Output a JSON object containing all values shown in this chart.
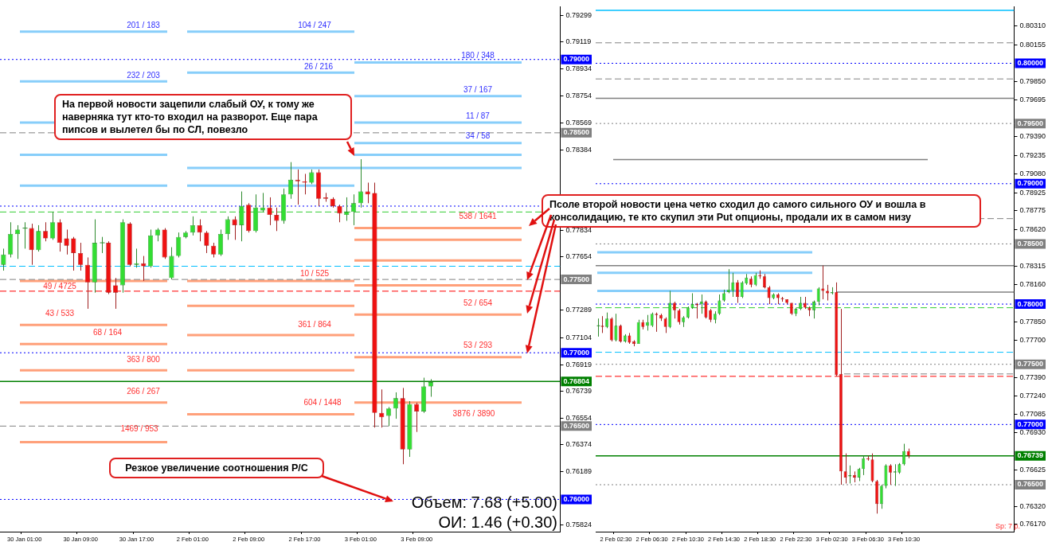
{
  "chart_data": [
    {
      "type": "candlestick",
      "categories": [
        null,
        null,
        null,
        "30 Jan 01:00",
        null,
        null,
        null,
        null,
        null,
        null,
        null,
        "30 Jan 09:00",
        null,
        null,
        null,
        null,
        null,
        null,
        null,
        "30 Jan 17:00",
        null,
        null,
        null,
        null,
        null,
        null,
        null,
        "2 Feb 01:00",
        null,
        null,
        null,
        null,
        null,
        null,
        null,
        "2 Feb 09:00",
        null,
        null,
        null,
        null,
        null,
        null,
        null,
        "2 Feb 17:00",
        null,
        null,
        null,
        null,
        null,
        null,
        null,
        "3 Feb 01:00",
        null,
        null,
        null,
        null,
        null,
        null,
        null,
        "3 Feb 09:00",
        null,
        null,
        null,
        null,
        null,
        null,
        null,
        null,
        null,
        null,
        null,
        null,
        null,
        null,
        null,
        null,
        null,
        null,
        null,
        null
      ],
      "ohlc": [
        [
          0.776,
          0.7771,
          0.7756,
          0.7767
        ],
        [
          0.7767,
          0.7789,
          0.7765,
          0.7781
        ],
        [
          0.7781,
          0.7787,
          0.7764,
          0.7784
        ],
        [
          0.7785,
          0.7789,
          0.7771,
          0.7785
        ],
        [
          0.7785,
          0.7788,
          0.776,
          0.777
        ],
        [
          0.777,
          0.7787,
          0.7769,
          0.7783
        ],
        [
          0.7783,
          0.7789,
          0.7776,
          0.7778
        ],
        [
          0.7778,
          0.7796,
          0.7777,
          0.7789
        ],
        [
          0.7789,
          0.7791,
          0.7769,
          0.7775
        ],
        [
          0.7778,
          0.7784,
          0.7767,
          0.7773
        ],
        [
          0.7778,
          0.7779,
          0.7756,
          0.7768
        ],
        [
          0.7768,
          0.7775,
          0.7756,
          0.776
        ],
        [
          0.776,
          0.7765,
          0.773,
          0.7748
        ],
        [
          0.7748,
          0.7791,
          0.7741,
          0.7775
        ],
        [
          0.7775,
          0.7779,
          0.7768,
          0.7775
        ],
        [
          0.7775,
          0.7776,
          0.774,
          0.7741
        ],
        [
          0.7746,
          0.7751,
          0.773,
          0.7741
        ],
        [
          0.7746,
          0.7791,
          0.7741,
          0.7789
        ],
        [
          0.7788,
          0.7789,
          0.7759,
          0.776
        ],
        [
          0.776,
          0.7771,
          0.7758,
          0.7761
        ],
        [
          0.7761,
          0.7766,
          0.7749,
          0.7759
        ],
        [
          0.7759,
          0.7784,
          0.7758,
          0.778
        ],
        [
          0.778,
          0.7785,
          0.7776,
          0.7784
        ],
        [
          0.7784,
          0.7785,
          0.7764,
          0.7765
        ],
        [
          0.7751,
          0.7772,
          0.775,
          0.7766
        ],
        [
          0.7766,
          0.7782,
          0.7765,
          0.7779
        ],
        [
          0.7779,
          0.7783,
          0.7778,
          0.7782
        ],
        [
          0.7782,
          0.7793,
          0.778,
          0.7787
        ],
        [
          0.7787,
          0.7791,
          0.7776,
          0.7782
        ],
        [
          0.7782,
          0.7783,
          0.7768,
          0.7773
        ],
        [
          0.7773,
          0.7775,
          0.7765,
          0.7767
        ],
        [
          0.7767,
          0.7784,
          0.7766,
          0.7781
        ],
        [
          0.7781,
          0.7793,
          0.7777,
          0.7791
        ],
        [
          0.7791,
          0.7793,
          0.7777,
          0.7787
        ],
        [
          0.7787,
          0.781,
          0.7776,
          0.78
        ],
        [
          0.7801,
          0.7802,
          0.7782,
          0.7783
        ],
        [
          0.7783,
          0.7808,
          0.7782,
          0.7799
        ],
        [
          0.7797,
          0.7809,
          0.7796,
          0.7799
        ],
        [
          0.7799,
          0.7806,
          0.7787,
          0.7794
        ],
        [
          0.7794,
          0.7799,
          0.7783,
          0.779
        ],
        [
          0.779,
          0.7812,
          0.7788,
          0.7808
        ],
        [
          0.7808,
          0.783,
          0.7805,
          0.7818
        ],
        [
          0.7818,
          0.7825,
          0.7801,
          0.7817
        ],
        [
          0.7817,
          0.7822,
          0.7808,
          0.7816
        ],
        [
          0.7816,
          0.7825,
          0.7815,
          0.7823
        ],
        [
          0.7823,
          0.7825,
          0.78,
          0.7805
        ],
        [
          0.7806,
          0.7809,
          0.7803,
          0.7805
        ],
        [
          0.7805,
          0.7806,
          0.7799,
          0.78
        ],
        [
          0.78,
          0.7801,
          0.7789,
          0.7795
        ],
        [
          0.7794,
          0.7806,
          0.779,
          0.7796
        ],
        [
          0.7796,
          0.7808,
          0.7787,
          0.7802
        ],
        [
          0.7802,
          0.7832,
          0.7799,
          0.781
        ],
        [
          0.781,
          0.7816,
          0.7802,
          0.7808
        ],
        [
          0.7809,
          0.7816,
          0.7649,
          0.7659
        ],
        [
          0.7659,
          0.7675,
          0.7649,
          0.7656
        ],
        [
          0.7657,
          0.7663,
          0.765,
          0.7662
        ],
        [
          0.7662,
          0.7673,
          0.7655,
          0.7669
        ],
        [
          0.7669,
          0.7676,
          0.7624,
          0.7634
        ],
        [
          0.7634,
          0.7667,
          0.7629,
          0.7665
        ],
        [
          0.7665,
          0.7666,
          0.7646,
          0.766
        ],
        [
          0.766,
          0.7683,
          0.7659,
          0.7677
        ],
        [
          0.7677,
          0.7682,
          0.767,
          0.768
        ],
        null,
        null,
        null,
        null,
        null,
        null,
        null,
        null,
        null,
        null,
        null,
        null,
        null,
        null,
        null,
        null,
        null,
        null
      ],
      "ylim": [
        0.7578,
        0.7936
      ],
      "yticks": [
        0.79299,
        0.79119,
        0.78934,
        0.78754,
        0.78569,
        0.78384,
        0.77834,
        0.77654,
        0.77289,
        0.77104,
        0.76919,
        0.76739,
        0.76554,
        0.76374,
        0.76189,
        0.75824
      ],
      "ref_lines": [
        {
          "axis": "y",
          "value": 0.7919,
          "color": "#87cefa"
        },
        {
          "axis": "y",
          "value": 0.7885,
          "color": "#87cefa"
        },
        {
          "axis": "y",
          "value": 0.7857,
          "color": "#87cefa"
        },
        {
          "axis": "y",
          "value": 0.7835,
          "color": "#87cefa"
        },
        {
          "axis": "y",
          "value": 0.7814,
          "color": "#87cefa"
        },
        {
          "axis": "y",
          "value": 0.7891,
          "color": "#87cefa"
        },
        {
          "axis": "y",
          "value": 0.7826,
          "color": "#87cefa"
        },
        {
          "axis": "y",
          "value": 0.7898,
          "color": "#87cefa"
        },
        {
          "axis": "y",
          "value": 0.7875,
          "color": "#87cefa"
        },
        {
          "axis": "y",
          "value": 0.7843,
          "color": "#87cefa"
        },
        {
          "axis": "y",
          "value": 0.7749,
          "color": "#ffa07a"
        },
        {
          "axis": "y",
          "value": 0.7719,
          "color": "#ffa07a"
        },
        {
          "axis": "y",
          "value": 0.7706,
          "color": "#ffa07a"
        },
        {
          "axis": "y",
          "value": 0.7688,
          "color": "#ffa07a"
        },
        {
          "axis": "y",
          "value": 0.7666,
          "color": "#ffa07a"
        },
        {
          "axis": "y",
          "value": 0.7639,
          "color": "#ffa07a"
        },
        {
          "axis": "y",
          "value": 0.7732,
          "color": "#ffa07a"
        },
        {
          "axis": "y",
          "value": 0.7712,
          "color": "#ffa07a"
        },
        {
          "axis": "y",
          "value": 0.7658,
          "color": "#ffa07a"
        },
        {
          "axis": "y",
          "value": 0.7785,
          "color": "#ffa07a"
        },
        {
          "axis": "y",
          "value": 0.7777,
          "color": "#ffa07a"
        },
        {
          "axis": "y",
          "value": 0.7763,
          "color": "#ffa07a"
        },
        {
          "axis": "y",
          "value": 0.7746,
          "color": "#ffa07a"
        },
        {
          "axis": "y",
          "value": 0.7726,
          "color": "#ffa07a"
        },
        {
          "axis": "y",
          "value": 0.7697,
          "color": "#ffa07a"
        },
        {
          "axis": "y",
          "value": 0.79,
          "label": "0.79000",
          "color": "#0000ff",
          "line_style": "dotted"
        },
        {
          "axis": "y",
          "value": 0.785,
          "label": "0.78500",
          "color": "#808080",
          "line_style": "dashed"
        },
        {
          "axis": "y",
          "value": 0.775,
          "label": "0.77500",
          "color": "#808080",
          "line_style": "dashed"
        },
        {
          "axis": "y",
          "value": 0.77,
          "label": "0.77000",
          "color": "#0000ff",
          "line_style": "dotted"
        },
        {
          "axis": "y",
          "value": 0.76804,
          "label": "0.76804",
          "color": "#008000",
          "line_style": "solid"
        },
        {
          "axis": "y",
          "value": 0.765,
          "label": "0.76500",
          "color": "#808080",
          "line_style": "dashed"
        },
        {
          "axis": "y",
          "value": 0.76,
          "label": "0.76000",
          "color": "#0000ff",
          "line_style": "dotted"
        },
        {
          "axis": "y",
          "value": 0.78,
          "color": "#0000ff",
          "line_style": "dotted"
        },
        {
          "axis": "y",
          "value": 0.7796,
          "color": "#32cd32",
          "line_style": "dashed"
        },
        {
          "axis": "y",
          "value": 0.7759,
          "color": "#00bfff",
          "line_style": "dashed"
        },
        {
          "axis": "y",
          "value": 0.7742,
          "color": "#ff0000",
          "line_style": "dashed"
        }
      ],
      "annotations": [
        "На первой новости зацепили слабый ОУ, к тому же наверняка тут кто-то входил на разворот. Еще пара пипсов и вылетел бы по СЛ, повезло",
        "Псоле второй новости цена четко сходил до самого сильного ОУ и вошла в консолидацию, те кто скупил эти Put опционы, продали их в самом низу",
        "Резкое увеличение соотношения Р/С",
        "Объем: 7.68 (+5.00)",
        "ОИ: 1.46 (+0.30)",
        {
          "text": "201 / 183",
          "y": 0.7919
        },
        {
          "text": "232 / 203",
          "y": 0.7885
        },
        {
          "text": "104 / 247",
          "y": 0.7919
        },
        {
          "text": "26 / 216",
          "y": 0.7891
        },
        {
          "text": "180 / 348",
          "y": 0.7898
        },
        {
          "text": "37 / 167",
          "y": 0.7875
        },
        {
          "text": "11 / 87",
          "y": 0.7857
        },
        {
          "text": "34 / 58",
          "y": 0.7843
        },
        {
          "text": "49 / 4725",
          "y": 0.7749
        },
        {
          "text": "43 / 533",
          "y": 0.7719
        },
        {
          "text": "68 / 164",
          "y": 0.7706
        },
        {
          "text": "363 / 800",
          "y": 0.7688
        },
        {
          "text": "266 / 267",
          "y": 0.7666
        },
        {
          "text": "1469 / 953",
          "y": 0.7639
        },
        {
          "text": "10 / 525",
          "y": 0.7749
        },
        {
          "text": "361 / 864",
          "y": 0.7712
        },
        {
          "text": "604 / 1448",
          "y": 0.7658
        },
        {
          "text": "538 / 1641",
          "y": 0.7785
        },
        {
          "text": "52 / 654",
          "y": 0.7726
        },
        {
          "text": "53 / 293",
          "y": 0.7697
        },
        {
          "text": "3876 / 3890",
          "y": 0.7666
        }
      ]
    },
    {
      "type": "candlestick",
      "categories": [
        null,
        null,
        null,
        null,
        "2 Feb 02:30",
        null,
        null,
        null,
        null,
        null,
        null,
        null,
        "2 Feb 06:30",
        null,
        null,
        null,
        null,
        null,
        null,
        null,
        "2 Feb 10:30",
        null,
        null,
        null,
        null,
        null,
        null,
        null,
        "2 Feb 14:30",
        null,
        null,
        null,
        null,
        null,
        null,
        null,
        "2 Feb 18:30",
        null,
        null,
        null,
        null,
        null,
        null,
        null,
        "2 Feb 22:30",
        null,
        null,
        null,
        null,
        null,
        null,
        null,
        "3 Feb 02:30",
        null,
        null,
        null,
        null,
        null,
        null,
        null,
        "3 Feb 06:30",
        null,
        null,
        null,
        null,
        null,
        null,
        null,
        "3 Feb 10:30",
        null,
        null,
        null,
        null,
        null,
        null,
        null,
        null,
        null,
        null,
        null,
        null,
        null,
        null,
        null,
        null,
        null,
        null,
        null,
        null,
        null,
        null,
        null,
        null
      ],
      "ohlc": [
        [
          0.7782,
          0.7788,
          0.7773,
          0.7782
        ],
        [
          0.7782,
          0.779,
          0.7776,
          0.7781
        ],
        [
          0.7781,
          0.7793,
          0.778,
          0.7788
        ],
        [
          0.7788,
          0.7789,
          0.7769,
          0.777
        ],
        [
          0.777,
          0.7792,
          0.7769,
          0.7782
        ],
        [
          0.7782,
          0.7783,
          0.7768,
          0.7769
        ],
        [
          0.7769,
          0.7775,
          0.7768,
          0.7774
        ],
        [
          0.7774,
          0.7776,
          0.7767,
          0.7768
        ],
        [
          0.7769,
          0.777,
          0.7765,
          0.7767
        ],
        [
          0.7767,
          0.7787,
          0.7767,
          0.7785
        ],
        [
          0.7785,
          0.7787,
          0.7779,
          0.7781
        ],
        [
          0.7782,
          0.7791,
          0.7778,
          0.7785
        ],
        [
          0.7782,
          0.7793,
          0.7781,
          0.7792
        ],
        [
          0.7792,
          0.7793,
          0.7777,
          0.7791
        ],
        [
          0.7791,
          0.7792,
          0.7786,
          0.7788
        ],
        [
          0.7788,
          0.7789,
          0.7776,
          0.7781
        ],
        [
          0.7781,
          0.7811,
          0.778,
          0.7801
        ],
        [
          0.7801,
          0.7802,
          0.7788,
          0.7795
        ],
        [
          0.7795,
          0.7796,
          0.7783,
          0.7785
        ],
        [
          0.7785,
          0.779,
          0.7781,
          0.7789
        ],
        [
          0.7789,
          0.7798,
          0.7788,
          0.7797
        ],
        [
          0.7797,
          0.7809,
          0.7796,
          0.78
        ],
        [
          0.78,
          0.7801,
          0.7788,
          0.7799
        ],
        [
          0.78,
          0.7808,
          0.7792,
          0.7802
        ],
        [
          0.7802,
          0.7803,
          0.7788,
          0.7789
        ],
        [
          0.7795,
          0.7796,
          0.7785,
          0.7787
        ],
        [
          0.7787,
          0.7794,
          0.7784,
          0.7792
        ],
        [
          0.7792,
          0.7808,
          0.7791,
          0.7803
        ],
        [
          0.7803,
          0.7812,
          0.7802,
          0.7809
        ],
        [
          0.781,
          0.7829,
          0.7809,
          0.7812
        ],
        [
          0.7811,
          0.7826,
          0.7806,
          0.7818
        ],
        [
          0.7818,
          0.782,
          0.7801,
          0.7806
        ],
        [
          0.7806,
          0.7819,
          0.7805,
          0.7818
        ],
        [
          0.7817,
          0.7825,
          0.7816,
          0.7822
        ],
        [
          0.7821,
          0.7823,
          0.7814,
          0.7816
        ],
        [
          0.7816,
          0.7826,
          0.7815,
          0.7824
        ],
        [
          0.7824,
          0.7828,
          0.7821,
          0.7823
        ],
        [
          0.7823,
          0.7825,
          0.7813,
          0.7814
        ],
        [
          0.7814,
          0.7815,
          0.78,
          0.7805
        ],
        [
          0.7805,
          0.7809,
          0.7804,
          0.7808
        ],
        [
          0.7808,
          0.7809,
          0.78,
          0.7805
        ],
        [
          0.7805,
          0.7806,
          0.7802,
          0.7804
        ],
        [
          0.7804,
          0.7804,
          0.78,
          0.7801
        ],
        [
          0.7801,
          0.7801,
          0.7791,
          0.7792
        ],
        [
          0.7792,
          0.7797,
          0.779,
          0.7796
        ],
        [
          0.7796,
          0.7806,
          0.7795,
          0.7801
        ],
        [
          0.7801,
          0.7806,
          0.7796,
          0.7797
        ],
        [
          0.7797,
          0.7798,
          0.779,
          0.7795
        ],
        [
          0.7795,
          0.7803,
          0.7788,
          0.7802
        ],
        [
          0.7802,
          0.7814,
          0.7799,
          0.7813
        ],
        [
          0.7813,
          0.7832,
          0.7804,
          0.7811
        ],
        [
          0.7811,
          0.7816,
          0.7803,
          0.7809
        ],
        [
          0.7809,
          0.7814,
          0.7808,
          0.781
        ],
        [
          0.781,
          0.7818,
          0.774,
          0.7741
        ],
        [
          0.7742,
          0.7796,
          0.765,
          0.7661
        ],
        [
          0.7661,
          0.7676,
          0.7651,
          0.7656
        ],
        [
          0.7657,
          0.7666,
          0.7651,
          0.7658
        ],
        [
          0.7658,
          0.7661,
          0.7652,
          0.7656
        ],
        [
          0.7656,
          0.7664,
          0.7653,
          0.7663
        ],
        [
          0.7663,
          0.7674,
          0.7658,
          0.7672
        ],
        [
          0.7672,
          0.7674,
          0.767,
          0.7671
        ],
        [
          0.7671,
          0.7676,
          0.7652,
          0.7653
        ],
        [
          0.7653,
          0.7654,
          0.7626,
          0.7634
        ],
        [
          0.7634,
          0.765,
          0.763,
          0.7649
        ],
        [
          0.7649,
          0.7667,
          0.7647,
          0.7666
        ],
        [
          0.7666,
          0.7667,
          0.765,
          0.766
        ],
        [
          0.766,
          0.7667,
          0.7649,
          0.7661
        ],
        [
          0.766,
          0.7668,
          0.7659,
          0.7667
        ],
        [
          0.7667,
          0.7684,
          0.7666,
          0.7678
        ],
        [
          0.7678,
          0.768,
          0.7672,
          0.7674
        ],
        null,
        null,
        null,
        null,
        null,
        null,
        null,
        null,
        null,
        null,
        null,
        null,
        null,
        null,
        null,
        null,
        null,
        null,
        null,
        null,
        null,
        null,
        null
      ],
      "ylim": [
        0.7611,
        0.8047
      ],
      "yticks": [
        {
          "value": 0.8031,
          "label": "0.80310"
        },
        {
          "value": 0.80155,
          "label": "0.80155"
        },
        {
          "value": 0.7985,
          "label": "0.79850"
        },
        {
          "value": 0.79695,
          "label": "0.79695"
        },
        {
          "value": 0.7939,
          "label": "0.79390"
        },
        {
          "value": 0.79235,
          "label": "0.79235"
        },
        {
          "value": 0.7908,
          "label": "0.79080"
        },
        {
          "value": 0.78925,
          "label": "0.78925"
        },
        {
          "value": 0.78775,
          "label": "0.78775"
        },
        {
          "value": 0.7862,
          "label": "0.78620"
        },
        {
          "value": 0.78315,
          "label": "0.78315"
        },
        {
          "value": 0.7816,
          "label": "0.78160"
        },
        {
          "value": 0.7785,
          "label": "0.77850"
        },
        {
          "value": 0.777,
          "label": "0.77700"
        },
        {
          "value": 0.7739,
          "label": "0.77390"
        },
        {
          "value": 0.7724,
          "label": "0.77240"
        },
        {
          "value": 0.77085,
          "label": "0.77085"
        },
        {
          "value": 0.7693,
          "label": "0.76930"
        },
        {
          "value": 0.76625,
          "label": "0.76625"
        },
        {
          "value": 0.7632,
          "label": "0.76320"
        },
        {
          "value": 0.7617,
          "label": "0.76170"
        }
      ],
      "ref_lines": [
        {
          "axis": "y",
          "value": 0.8044,
          "color": "#00bfff",
          "line_style": "solid"
        },
        {
          "axis": "y",
          "value": 0.8017,
          "color": "#808080",
          "line_style": "dashed"
        },
        {
          "axis": "y",
          "value": 0.8,
          "label": "0.80000",
          "color": "#0000ff",
          "line_style": "dotted"
        },
        {
          "axis": "y",
          "value": 0.7987,
          "color": "#808080",
          "line_style": "dashed"
        },
        {
          "axis": "y",
          "value": 0.7971,
          "color": "#808080",
          "line_style": "solid"
        },
        {
          "axis": "y",
          "value": 0.795,
          "label": "0.79500",
          "color": "#808080",
          "line_style": "dotted"
        },
        {
          "axis": "y",
          "value": 0.792,
          "color": "#808080",
          "line_style": "solid"
        },
        {
          "axis": "y",
          "value": 0.79,
          "label": "0.79000",
          "color": "#0000ff",
          "line_style": "dotted"
        },
        {
          "axis": "y",
          "value": 0.7871,
          "color": "#808080",
          "line_style": "dashed"
        },
        {
          "axis": "y",
          "value": 0.785,
          "label": "0.78500",
          "color": "#808080",
          "line_style": "dotted"
        },
        {
          "axis": "y",
          "value": 0.7843,
          "color": "#87cefa"
        },
        {
          "axis": "y",
          "value": 0.7832,
          "color": "#808080",
          "line_style": "solid"
        },
        {
          "axis": "y",
          "value": 0.7826,
          "color": "#87cefa"
        },
        {
          "axis": "y",
          "value": 0.7811,
          "color": "#87cefa"
        },
        {
          "axis": "y",
          "value": 0.781,
          "color": "#808080",
          "line_style": "solid"
        },
        {
          "axis": "y",
          "value": 0.78,
          "label": "0.78000",
          "color": "#0000ff",
          "line_style": "dotted"
        },
        {
          "axis": "y",
          "value": 0.7797,
          "color": "#32cd32",
          "line_style": "dashed"
        },
        {
          "axis": "y",
          "value": 0.776,
          "color": "#00bfff",
          "line_style": "dashed"
        },
        {
          "axis": "y",
          "value": 0.775,
          "label": "0.77500",
          "color": "#808080",
          "line_style": "dotted"
        },
        {
          "axis": "y",
          "value": 0.7742,
          "color": "#808080",
          "line_style": "dashed"
        },
        {
          "axis": "y",
          "value": 0.774,
          "color": "#ff0000",
          "line_style": "dashed"
        },
        {
          "axis": "y",
          "value": 0.77,
          "label": "0.77000",
          "color": "#0000ff",
          "line_style": "dotted"
        },
        {
          "axis": "y",
          "value": 0.76739,
          "label": "0.76739",
          "color": "#008000",
          "line_style": "solid"
        },
        {
          "axis": "y",
          "value": 0.765,
          "label": "0.76500",
          "color": "#808080",
          "line_style": "dotted"
        }
      ],
      "annotations": [
        "Sp: 7 p."
      ]
    }
  ]
}
